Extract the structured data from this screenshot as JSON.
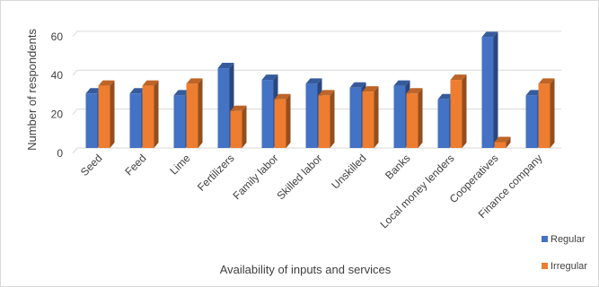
{
  "chart_data": {
    "type": "bar",
    "title": "",
    "xlabel": "Availability of inputs and services",
    "ylabel": "Number of respondents",
    "ylim": [
      0,
      65
    ],
    "yticks": [
      0,
      20,
      40,
      60
    ],
    "grid": true,
    "legend_position": "bottom-right",
    "categories": [
      "Seed",
      "Feed",
      "Lime",
      "Fertilizers",
      "Family labor",
      "Skilled labor",
      "Unskilled",
      "Banks",
      "Local money lenders",
      "Cooperatives",
      "Finance company"
    ],
    "series": [
      {
        "name": "Regular",
        "color": "#4472C4",
        "values": [
          28,
          28,
          27,
          41,
          35,
          33,
          31,
          32,
          25,
          57,
          27
        ]
      },
      {
        "name": "Irregular",
        "color": "#ED7D31",
        "values": [
          32,
          32,
          33,
          19,
          25,
          27,
          29,
          28,
          35,
          3,
          33
        ]
      }
    ]
  }
}
